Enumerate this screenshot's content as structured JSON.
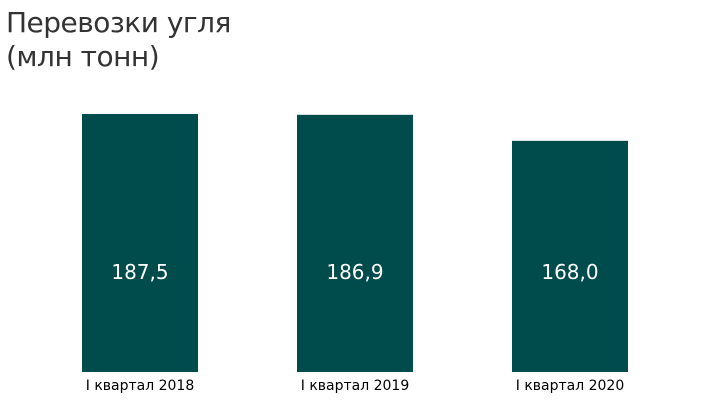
{
  "chart_data": {
    "type": "bar",
    "title_line1": "Перевозки угля",
    "title_line2": "(млн тонн)",
    "categories": [
      "I квартал 2018",
      "I квартал 2019",
      "I квартал 2020"
    ],
    "values": [
      187.5,
      186.9,
      168.0
    ],
    "value_labels": [
      "187,5",
      "186,9",
      "168,0"
    ],
    "xlabel": "",
    "ylabel": "",
    "ylim": [
      0,
      187.5
    ],
    "grid": false,
    "legend": "none",
    "bar_color": "#004b4c"
  }
}
